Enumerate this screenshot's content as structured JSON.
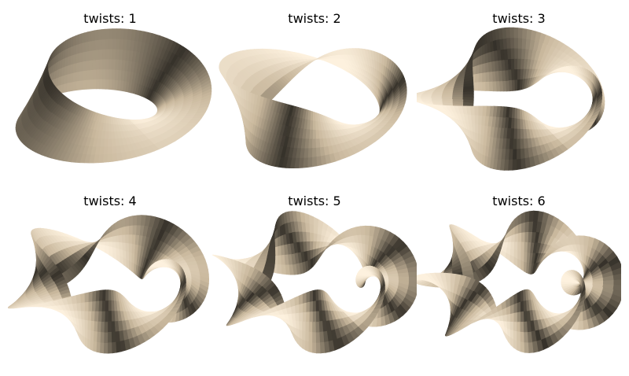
{
  "figure": {
    "background": "#ffffff",
    "panels": [
      {
        "title": "twists: 1",
        "twists": 1
      },
      {
        "title": "twists: 2",
        "twists": 2
      },
      {
        "title": "twists: 3",
        "twists": 3
      },
      {
        "title": "twists: 4",
        "twists": 4
      },
      {
        "title": "twists: 5",
        "twists": 5
      },
      {
        "title": "twists: 6",
        "twists": 6
      }
    ],
    "colors": {
      "light": "#fdf1de",
      "mid": "#c9b89d",
      "dark": "#1c1a16"
    }
  }
}
